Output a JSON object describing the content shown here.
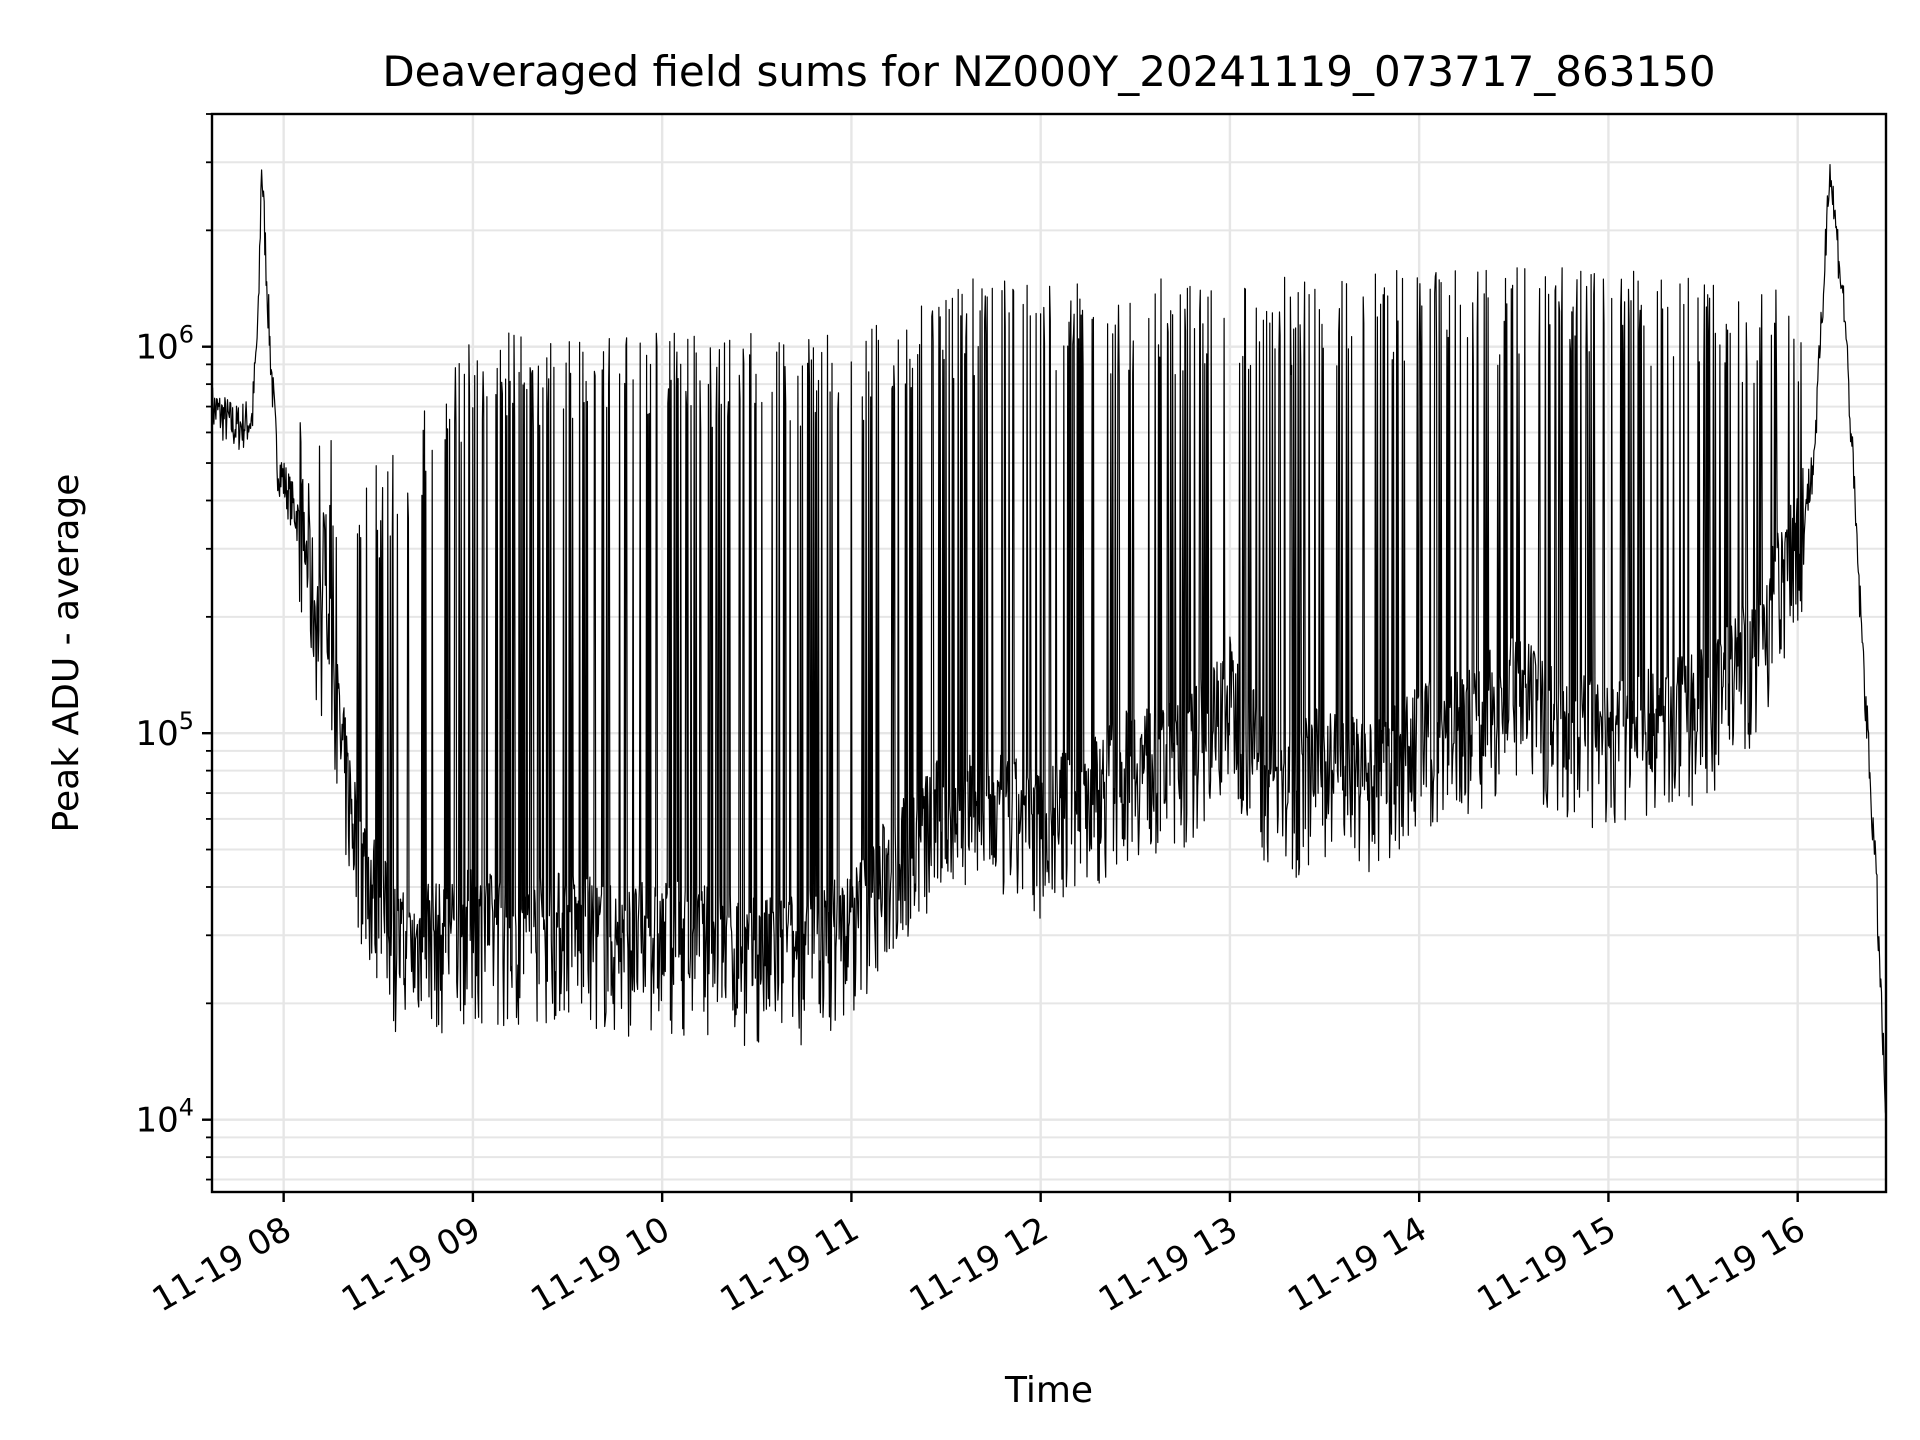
{
  "chart_data": {
    "type": "line",
    "title": "Deaveraged field sums for NZ000Y_20241119_073717_863150",
    "xlabel": "Time",
    "ylabel": "Peak ADU - average",
    "yscale": "log",
    "grid": true,
    "x_range": [
      "2024-11-19 07:37:17",
      "2024-11-19 16:28:00"
    ],
    "ylim": [
      6500,
      4000000
    ],
    "x_ticks": [
      {
        "time": "2024-11-19 08:00",
        "label": "11-19 08"
      },
      {
        "time": "2024-11-19 09:00",
        "label": "11-19 09"
      },
      {
        "time": "2024-11-19 10:00",
        "label": "11-19 10"
      },
      {
        "time": "2024-11-19 11:00",
        "label": "11-19 11"
      },
      {
        "time": "2024-11-19 12:00",
        "label": "11-19 12"
      },
      {
        "time": "2024-11-19 13:00",
        "label": "11-19 13"
      },
      {
        "time": "2024-11-19 14:00",
        "label": "11-19 14"
      },
      {
        "time": "2024-11-19 15:00",
        "label": "11-19 15"
      },
      {
        "time": "2024-11-19 16:00",
        "label": "11-19 16"
      }
    ],
    "y_ticks": [
      {
        "value": 10000,
        "base": "10",
        "exp": "4"
      },
      {
        "value": 100000,
        "base": "10",
        "exp": "5"
      },
      {
        "value": 1000000,
        "base": "10",
        "exp": "6"
      }
    ],
    "series": [
      {
        "color": "#000000",
        "x": [
          "2024-11-19 07:37",
          "2024-11-19 07:45",
          "2024-11-19 07:50",
          "2024-11-19 07:52",
          "2024-11-19 07:53",
          "2024-11-19 07:55",
          "2024-11-19 07:56",
          "2024-11-19 07:58",
          "2024-11-19 08:05",
          "2024-11-19 08:10",
          "2024-11-19 08:15",
          "2024-11-19 08:18",
          "2024-11-19 08:20",
          "2024-11-19 08:25",
          "2024-11-19 08:30",
          "2024-11-19 08:35",
          "2024-11-19 08:40",
          "2024-11-19 08:45",
          "2024-11-19 08:50",
          "2024-11-19 09:00",
          "2024-11-19 09:15",
          "2024-11-19 09:30",
          "2024-11-19 09:45",
          "2024-11-19 10:00",
          "2024-11-19 10:15",
          "2024-11-19 10:30",
          "2024-11-19 10:45",
          "2024-11-19 11:00",
          "2024-11-19 11:15",
          "2024-11-19 11:30",
          "2024-11-19 11:45",
          "2024-11-19 12:00",
          "2024-11-19 12:15",
          "2024-11-19 12:30",
          "2024-11-19 12:45",
          "2024-11-19 13:00",
          "2024-11-19 13:15",
          "2024-11-19 13:30",
          "2024-11-19 13:45",
          "2024-11-19 14:00",
          "2024-11-19 14:15",
          "2024-11-19 14:30",
          "2024-11-19 14:45",
          "2024-11-19 15:00",
          "2024-11-19 15:15",
          "2024-11-19 15:30",
          "2024-11-19 15:45",
          "2024-11-19 16:00",
          "2024-11-19 16:05",
          "2024-11-19 16:08",
          "2024-11-19 16:10",
          "2024-11-19 16:15",
          "2024-11-19 16:20",
          "2024-11-19 16:25",
          "2024-11-19 16:28"
        ],
        "y": [
          700000,
          620000,
          650000,
          1200000,
          3000000,
          1300000,
          900000,
          500000,
          350000,
          200000,
          150000,
          90000,
          70000,
          45000,
          35000,
          28000,
          25000,
          30000,
          27000,
          30000,
          28000,
          30000,
          27000,
          28000,
          27000,
          25000,
          26000,
          30000,
          45000,
          60000,
          60000,
          55000,
          65000,
          80000,
          80000,
          120000,
          65000,
          80000,
          70000,
          90000,
          100000,
          120000,
          100000,
          90000,
          100000,
          110000,
          150000,
          300000,
          500000,
          1300000,
          3000000,
          1200000,
          200000,
          40000,
          10000
        ],
        "envelope_upper": [
          {
            "t": "2024-11-19 08:00",
            "v": 700000
          },
          {
            "t": "2024-11-19 08:30",
            "v": 500000
          },
          {
            "t": "2024-11-19 09:00",
            "v": 1100000
          },
          {
            "t": "2024-11-19 10:00",
            "v": 1100000
          },
          {
            "t": "2024-11-19 11:00",
            "v": 1100000
          },
          {
            "t": "2024-11-19 11:30",
            "v": 1500000
          },
          {
            "t": "2024-11-19 12:30",
            "v": 1500000
          },
          {
            "t": "2024-11-19 13:00",
            "v": 1500000
          },
          {
            "t": "2024-11-19 14:00",
            "v": 1600000
          },
          {
            "t": "2024-11-19 15:00",
            "v": 1600000
          },
          {
            "t": "2024-11-19 16:00",
            "v": 1400000
          }
        ]
      }
    ]
  }
}
